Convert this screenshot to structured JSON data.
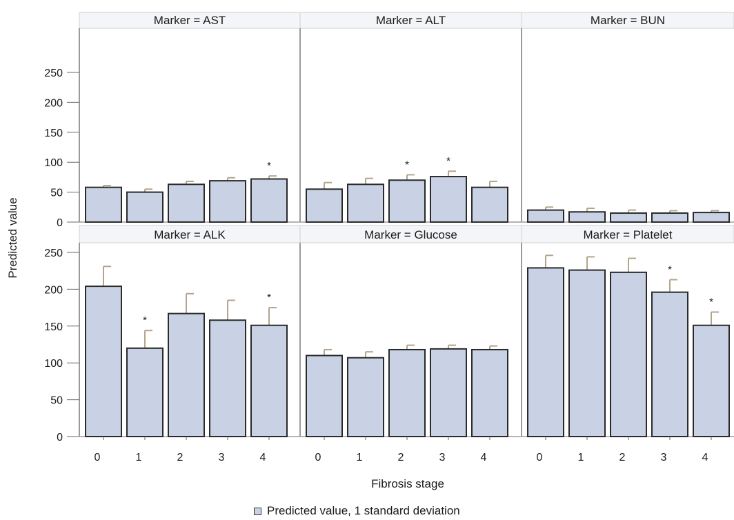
{
  "chart_data": {
    "type": "bar",
    "layout": "2x3 panel grid",
    "xlabel": "Fibrosis stage",
    "ylabel": "Predicted value",
    "ylim": [
      0,
      250
    ],
    "yticks": [
      0,
      50,
      100,
      150,
      200,
      250
    ],
    "categories": [
      "0",
      "1",
      "2",
      "3",
      "4"
    ],
    "significance_marker": "*",
    "legend": {
      "label": "Predicted value, 1 standard deviation",
      "position": "bottom-center"
    },
    "colors": {
      "bar_fill": "#c8d2e4",
      "bar_stroke": "#2a2a2a",
      "error_bar": "#b3a48c",
      "header_fill": "#f4f5f8",
      "panel_border": "#9a9a9a"
    },
    "panels": [
      {
        "title": "Marker = AST",
        "values": [
          58,
          50,
          63,
          69,
          72
        ],
        "sd": [
          3,
          5,
          5,
          5,
          5
        ],
        "significant": [
          false,
          false,
          false,
          false,
          true
        ]
      },
      {
        "title": "Marker = ALT",
        "values": [
          55,
          63,
          70,
          76,
          58
        ],
        "sd": [
          11,
          10,
          9,
          9,
          10
        ],
        "significant": [
          false,
          false,
          true,
          true,
          false
        ]
      },
      {
        "title": "Marker = BUN",
        "values": [
          20,
          17,
          15,
          15,
          16
        ],
        "sd": [
          5,
          6,
          5,
          4,
          3
        ],
        "significant": [
          false,
          false,
          false,
          false,
          false
        ]
      },
      {
        "title": "Marker = ALK",
        "values": [
          204,
          120,
          167,
          158,
          151
        ],
        "sd": [
          27,
          24,
          27,
          27,
          24
        ],
        "significant": [
          false,
          true,
          false,
          false,
          true
        ]
      },
      {
        "title": "Marker = Glucose",
        "values": [
          110,
          107,
          118,
          119,
          118
        ],
        "sd": [
          8,
          8,
          6,
          5,
          5
        ],
        "significant": [
          false,
          false,
          false,
          false,
          false
        ]
      },
      {
        "title": "Marker = Platelet",
        "values": [
          229,
          226,
          223,
          196,
          151
        ],
        "sd": [
          17,
          18,
          19,
          17,
          18
        ],
        "significant": [
          false,
          false,
          false,
          true,
          true
        ]
      }
    ]
  }
}
